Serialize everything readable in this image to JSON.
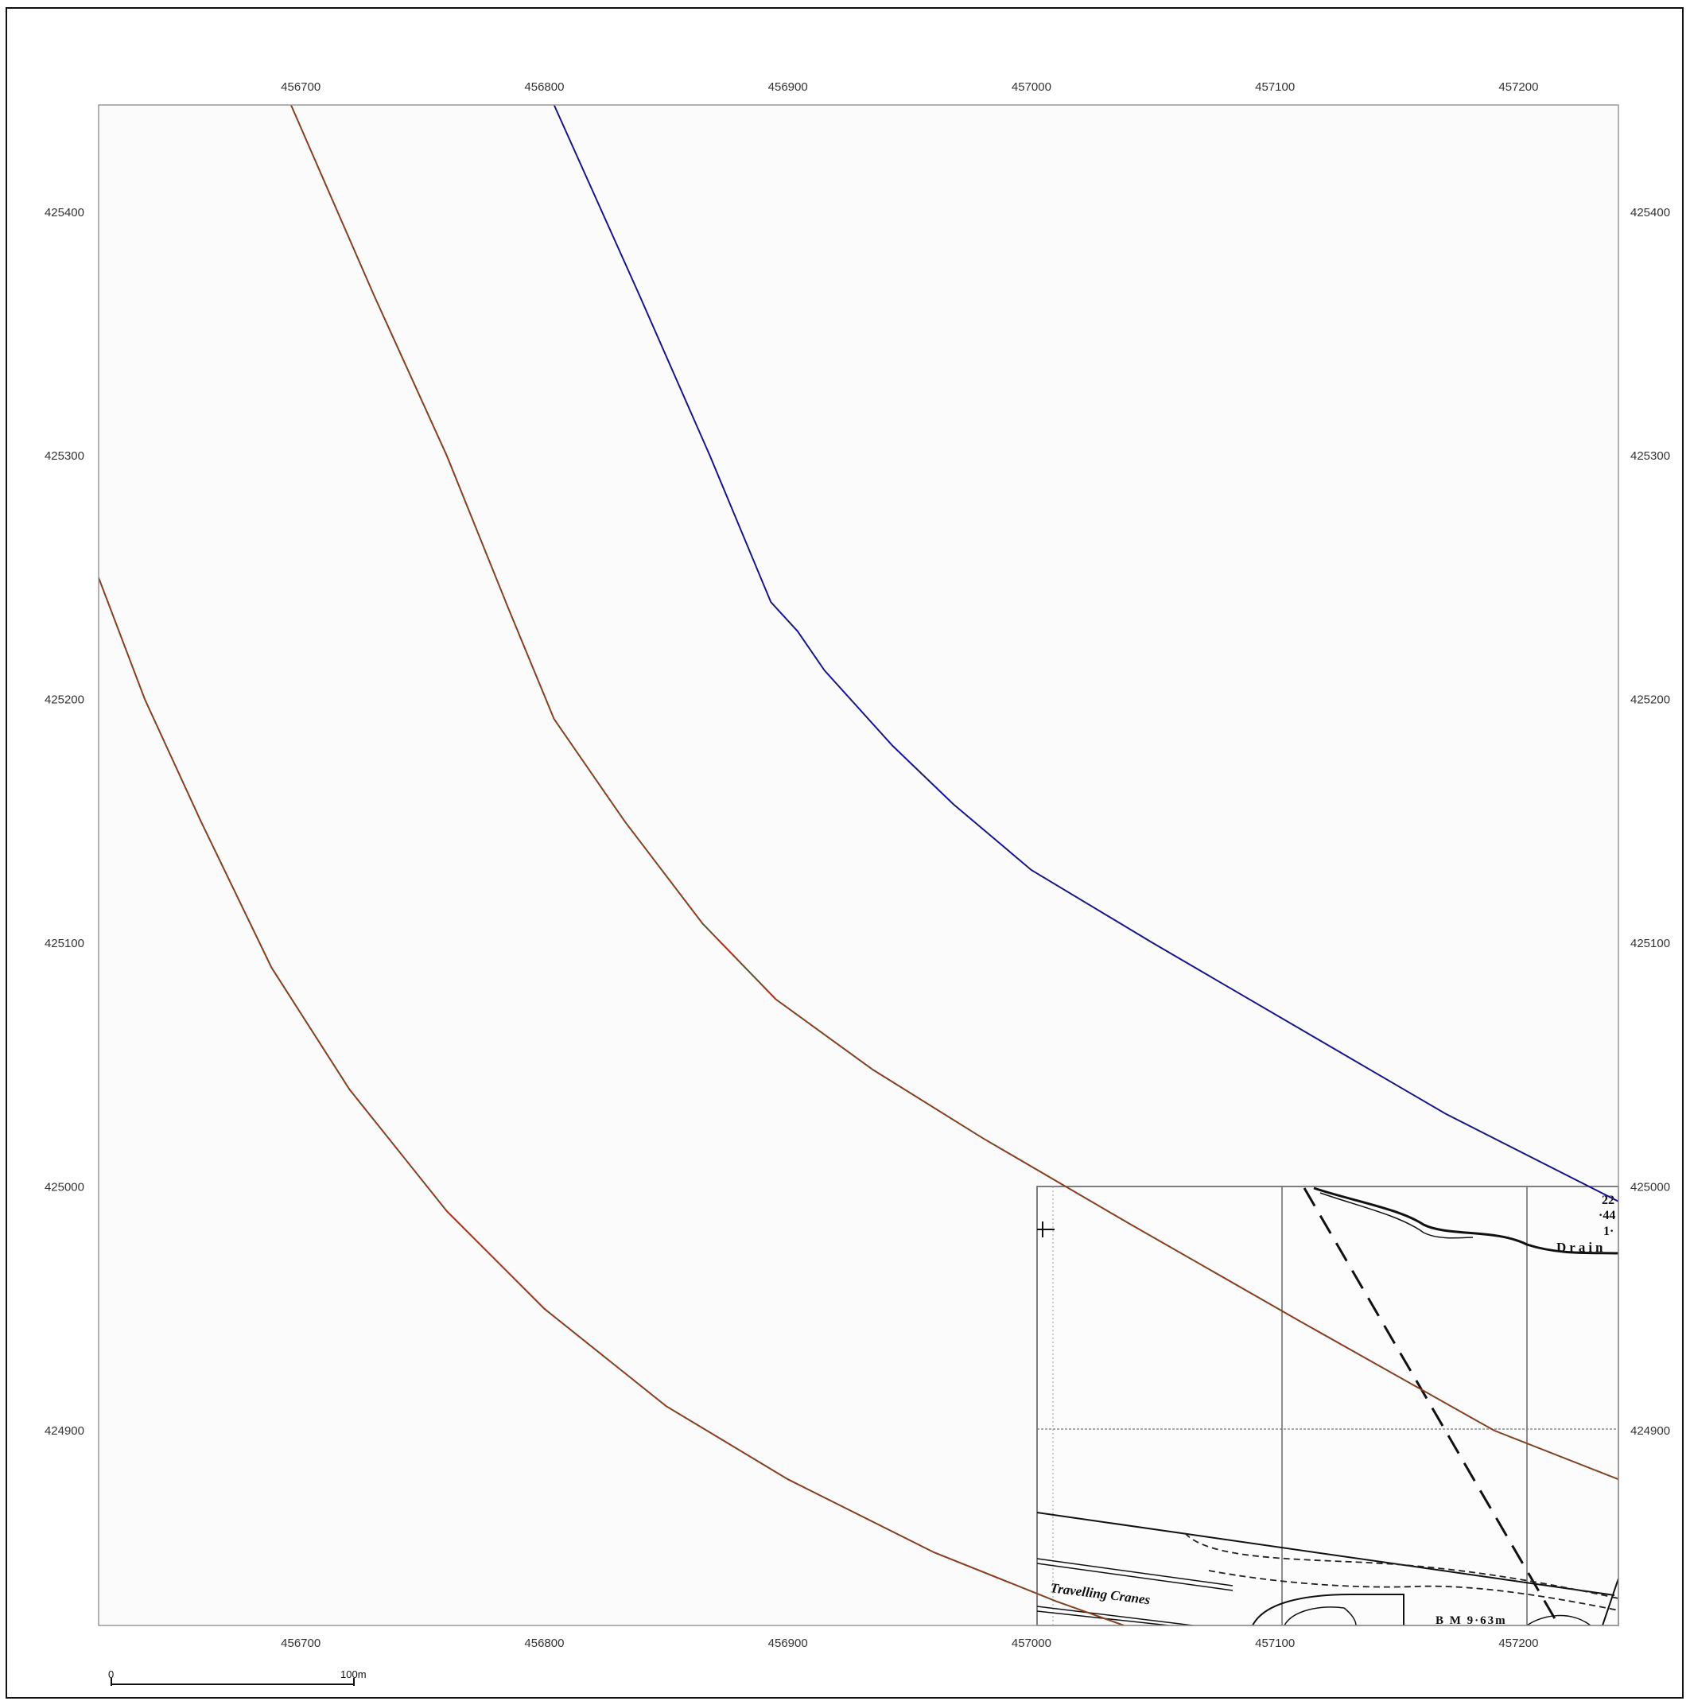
{
  "map": {
    "x_axis": {
      "top_ticks": [
        "456700",
        "456800",
        "456900",
        "457000",
        "457100",
        "457200"
      ],
      "bottom_ticks": [
        "456700",
        "456800",
        "456900",
        "457000",
        "457100",
        "457200"
      ],
      "values": [
        456700,
        456800,
        456900,
        457000,
        457100,
        457200
      ]
    },
    "y_axis": {
      "left_ticks": [
        "425400",
        "425300",
        "425200",
        "425100",
        "425000",
        "424900"
      ],
      "right_ticks": [
        "425400",
        "425300",
        "425200",
        "425100",
        "425000",
        "424900"
      ],
      "values": [
        425400,
        425300,
        425200,
        425100,
        425000,
        424900
      ]
    },
    "extent": {
      "xmin": 456617,
      "xmax": 457241,
      "ymin": 424820,
      "ymax": 425444
    },
    "colors": {
      "blue_line": "#1515e8",
      "red_line": "#e41010",
      "green_line": "#2f6b2f",
      "frame": "#999999",
      "sheet_border": "#111111"
    },
    "lines": [
      {
        "id": "blue-track",
        "color": "blue",
        "points": [
          [
            456804,
            425444
          ],
          [
            456839,
            425366
          ],
          [
            456868,
            425300
          ],
          [
            456893,
            425240
          ],
          [
            456904,
            425228
          ],
          [
            456915,
            425212
          ],
          [
            456943,
            425181
          ],
          [
            456968,
            425157
          ],
          [
            457000,
            425130
          ],
          [
            457050,
            425100
          ],
          [
            457110,
            425065
          ],
          [
            457170,
            425030
          ],
          [
            457241,
            424994
          ]
        ]
      },
      {
        "id": "middle-track",
        "color": "red",
        "points": [
          [
            456696,
            425444
          ],
          [
            456730,
            425366
          ],
          [
            456760,
            425300
          ],
          [
            456785,
            425238
          ],
          [
            456804,
            425192
          ],
          [
            456833,
            425150
          ],
          [
            456865,
            425108
          ],
          [
            456895,
            425077
          ],
          [
            456935,
            425048
          ],
          [
            456980,
            425020
          ],
          [
            457040,
            424985
          ],
          [
            457110,
            424945
          ],
          [
            457190,
            424900
          ],
          [
            457241,
            424880
          ]
        ]
      },
      {
        "id": "south-track",
        "color": "red",
        "points": [
          [
            456617,
            425250
          ],
          [
            456636,
            425200
          ],
          [
            456659,
            425150
          ],
          [
            456688,
            425090
          ],
          [
            456720,
            425040
          ],
          [
            456760,
            424990
          ],
          [
            456800,
            424950
          ],
          [
            456850,
            424910
          ],
          [
            456900,
            424880
          ],
          [
            456960,
            424850
          ],
          [
            457010,
            424830
          ],
          [
            457038,
            424820
          ]
        ]
      }
    ],
    "inset": {
      "labels": {
        "drain": "Drain",
        "travelling_cranes": "Travelling Cranes",
        "bm": "B M 9·63m",
        "corner_a": "22",
        "corner_b": "·44",
        "corner_c": "1·"
      }
    },
    "scale_bar": {
      "start_label": "0",
      "end_label": "100m"
    }
  }
}
